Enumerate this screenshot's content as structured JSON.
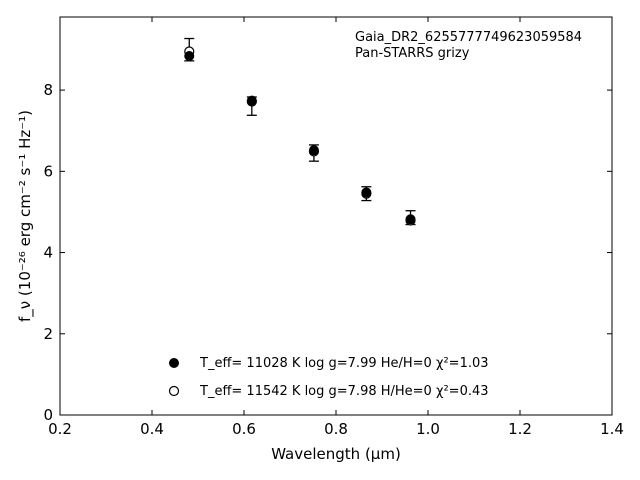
{
  "chart_data": {
    "type": "scatter",
    "xlabel": "Wavelength (μm)",
    "ylabel": "f_ν (10⁻²⁶ erg cm⁻² s⁻¹ Hz⁻¹)",
    "xlim": [
      0.2,
      1.4
    ],
    "ylim": [
      0,
      9.8
    ],
    "xticks": [
      "0.2",
      "0.4",
      "0.6",
      "0.8",
      "1.0",
      "1.2",
      "1.4"
    ],
    "yticks": [
      "0",
      "2",
      "4",
      "6",
      "8"
    ],
    "annotations": [
      "Gaia_DR2_6255777749623059584",
      "Pan-STARRS grizy"
    ],
    "observed": {
      "x": [
        0.481,
        0.617,
        0.752,
        0.866,
        0.962
      ],
      "y": [
        8.92,
        7.73,
        6.55,
        5.48,
        4.81
      ],
      "yerr_low": [
        0.2,
        0.35,
        0.3,
        0.2,
        0.12
      ],
      "yerr_high": [
        0.35,
        0.1,
        0.1,
        0.14,
        0.22
      ]
    },
    "series": [
      {
        "marker": "filled-circle",
        "legend": "T_eff= 11028 K  log g=7.99  He/H=0  χ²=1.03",
        "x": [
          0.481,
          0.617,
          0.752,
          0.866,
          0.962
        ],
        "y": [
          8.84,
          7.74,
          6.52,
          5.48,
          4.82
        ]
      },
      {
        "marker": "open-circle",
        "legend": "T_eff= 11542 K  log g=7.98  H/He=0  χ²=0.43",
        "x": [
          0.481,
          0.617,
          0.752,
          0.866,
          0.962
        ],
        "y": [
          8.95,
          7.72,
          6.49,
          5.45,
          4.79
        ]
      }
    ],
    "legend_placement": "lower-center",
    "grid": false
  },
  "colors": {
    "axes": "#000000",
    "background": "#ffffff"
  }
}
